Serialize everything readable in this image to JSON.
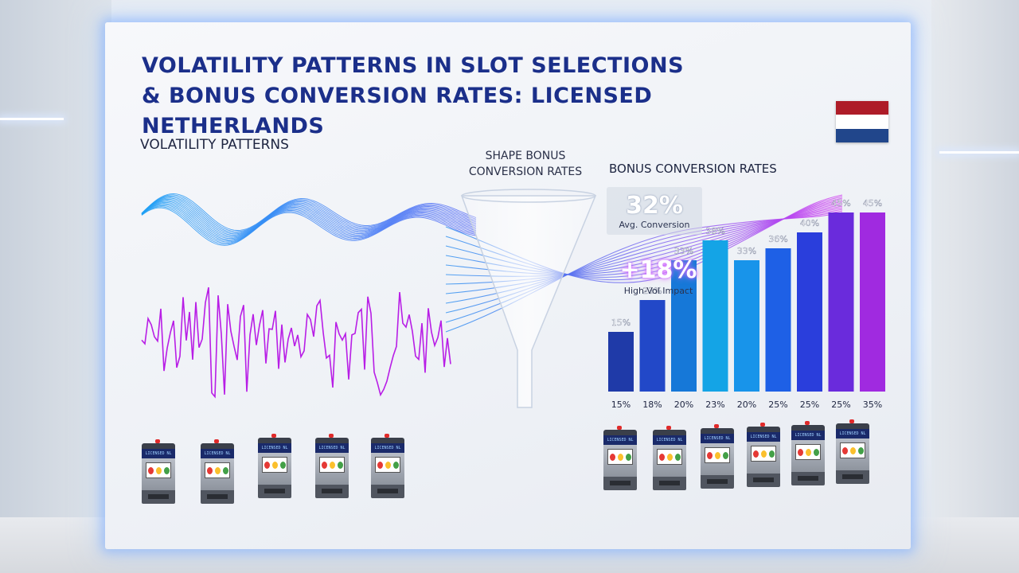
{
  "title_line1": "Volatility Patterns in Slot Selections",
  "title_line2": "& Bonus Conversion Rates: Licensed Netherlands",
  "volatility_label": "Volatility Patterns",
  "funnel_label_line1": "Shape Bonus",
  "funnel_label_line2": "Conversion Rates",
  "bonus_label": "Bonus Conversion Rates",
  "stats": [
    {
      "value": "32%",
      "label": "Avg. Conversion"
    },
    {
      "value": "+18%",
      "label": "High-Vol Impact"
    }
  ],
  "flag_colors": [
    "#ae1c28",
    "#ffffff",
    "#21468b"
  ],
  "machine_screen_text": [
    "LICENSED NL",
    "LICENSED NL",
    "LICENSED NL",
    "LICENSED NL",
    "LICENSED NL",
    "LICENSED NL",
    "LICENSED NL",
    "LICENSED NL",
    "LICENSED NL",
    "LICENSED NL",
    "LICENSED NL"
  ],
  "chart_data": {
    "type": "bar",
    "title": "Bonus Conversion Rates",
    "categories": [
      "15%",
      "18%",
      "20%",
      "23%",
      "20%",
      "25%",
      "25%",
      "25%",
      "35%"
    ],
    "values": [
      15,
      23,
      33,
      38,
      33,
      36,
      40,
      45,
      45
    ],
    "value_labels": [
      "15%",
      "23%",
      "33%",
      "38%",
      "33%",
      "36%",
      "40%",
      "45%",
      "45%"
    ],
    "ylim": [
      0,
      50
    ],
    "colors": [
      "#1f3aa8",
      "#2248c8",
      "#1678d8",
      "#14a4e6",
      "#1894ea",
      "#1e60e6",
      "#2a3edc",
      "#6a2bdc",
      "#a02ae0"
    ],
    "grid": false
  }
}
